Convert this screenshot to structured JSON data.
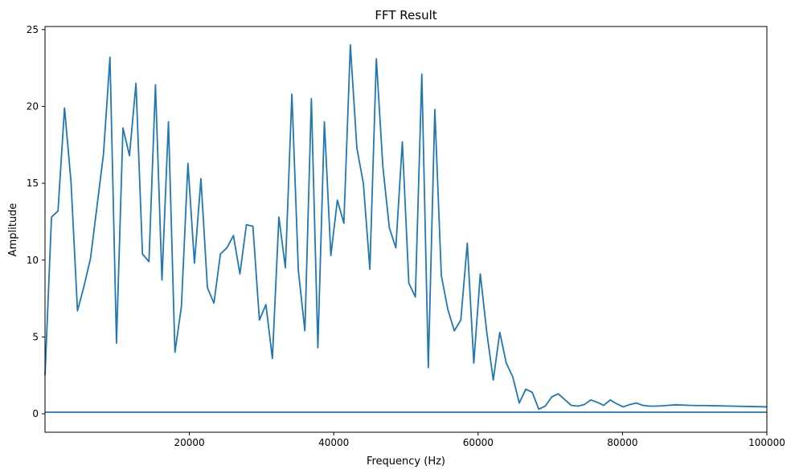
{
  "chart_data": {
    "type": "line",
    "title": "FFT Result",
    "xlabel": "Frequency (Hz)",
    "ylabel": "Amplitude",
    "xlim": [
      0,
      100000
    ],
    "ylim": [
      -1.2,
      25.2
    ],
    "x_ticks": [
      20000,
      40000,
      60000,
      80000,
      100000
    ],
    "x_tick_labels": [
      "20000",
      "40000",
      "60000",
      "80000",
      "100000"
    ],
    "y_ticks": [
      0,
      5,
      10,
      15,
      20,
      25
    ],
    "y_tick_labels": [
      "0",
      "5",
      "10",
      "15",
      "20",
      "25"
    ],
    "grid": false,
    "legend": false,
    "series_color": "#1f77b4",
    "series": [
      {
        "x": [
          0,
          900,
          1800,
          2700,
          3600,
          4500,
          5400,
          6300,
          7200,
          8100,
          9000,
          9900,
          10800,
          11700,
          12600,
          13500,
          14400,
          15300,
          16200,
          17100,
          18000,
          18900,
          19800,
          20700,
          21600,
          22500,
          23400,
          24300,
          25200,
          26100,
          27000,
          27900,
          28800,
          29700,
          30600,
          31500,
          32400,
          33300,
          34200,
          35100,
          36000,
          36900,
          37800,
          38700,
          39600,
          40500,
          41400,
          42300,
          43200,
          44100,
          45000,
          45900,
          46800,
          47700,
          48600,
          49500,
          50400,
          51300,
          52200,
          53100,
          54000,
          54900,
          55800,
          56700,
          57600,
          58500,
          59400,
          60300,
          61200,
          62100,
          63000,
          63900,
          64800,
          65700,
          66600,
          67500,
          68400,
          69300,
          70200,
          71100,
          72900,
          73800,
          74700,
          75600,
          76500,
          77400,
          78300,
          79200,
          80100,
          81000,
          81900,
          82800,
          83700,
          84600,
          85500,
          86400,
          87300,
          88200,
          89100,
          90000,
          92000,
          95000,
          98000,
          100000
        ],
        "values": [
          2.5,
          12.8,
          13.2,
          19.9,
          15.1,
          6.7,
          8.3,
          10.1,
          13.5,
          16.9,
          23.2,
          4.6,
          18.6,
          16.8,
          21.5,
          10.4,
          9.9,
          21.4,
          8.7,
          19.0,
          4.0,
          7.0,
          16.3,
          9.8,
          15.3,
          8.2,
          7.2,
          10.4,
          10.8,
          11.6,
          9.1,
          12.3,
          12.2,
          6.1,
          7.1,
          3.6,
          12.8,
          9.5,
          20.8,
          9.3,
          5.4,
          20.5,
          4.3,
          19.0,
          10.3,
          13.9,
          12.4,
          24.0,
          17.3,
          15.0,
          9.4,
          23.1,
          16.1,
          12.1,
          10.8,
          17.7,
          8.5,
          7.6,
          22.1,
          3.0,
          19.8,
          9.0,
          6.8,
          5.4,
          6.1,
          11.1,
          3.3,
          9.1,
          5.3,
          2.2,
          5.3,
          3.3,
          2.4,
          0.7,
          1.6,
          1.4,
          0.3,
          0.5,
          1.1,
          1.3,
          0.55,
          0.5,
          0.6,
          0.9,
          0.75,
          0.55,
          0.9,
          0.65,
          0.45,
          0.6,
          0.7,
          0.55,
          0.5,
          0.5,
          0.52,
          0.55,
          0.58,
          0.57,
          0.55,
          0.54,
          0.53,
          0.5,
          0.47,
          0.45
        ]
      },
      {
        "x": [
          0,
          100000
        ],
        "values": [
          0.1,
          0.1
        ]
      }
    ]
  }
}
